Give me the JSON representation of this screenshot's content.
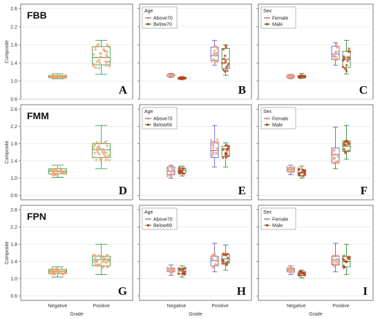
{
  "figure": {
    "y_axis_label": "Composite",
    "x_axis_label": "Grade",
    "y_ticks": [
      "0.6",
      "1.0",
      "1.4",
      "1.8",
      "2.2",
      "2.6"
    ],
    "x_ticks": [
      "Negative",
      "Positive"
    ]
  },
  "colors": {
    "single": "#2ea043",
    "above": "#5b5fd6",
    "below": "#2e8b32",
    "female": "#5b5fd6",
    "male": "#2e8b32",
    "dot": "#f0a070",
    "dot_dark": "#c0401a",
    "grid": "#e4e4e4"
  },
  "chart_data": [
    {
      "panel": "A",
      "row_label": "FBB",
      "type": "box",
      "ylabel": "Composite",
      "xlabel": "",
      "ylim": [
        0.6,
        2.7
      ],
      "categories": [
        "Negative",
        "Positive"
      ],
      "series": [
        {
          "boxes": [
            [
              1.05,
              1.08,
              1.1,
              1.12,
              1.16
            ],
            [
              1.15,
              1.36,
              1.52,
              1.76,
              1.9
            ]
          ]
        }
      ]
    },
    {
      "panel": "B",
      "type": "box",
      "legend_title": "Age",
      "ylim": [
        0.6,
        2.7
      ],
      "categories": [
        "Negative",
        "Positive"
      ],
      "series": [
        {
          "name": "Above70",
          "boxes": [
            [
              1.08,
              1.11,
              1.13,
              1.15,
              1.17
            ],
            [
              1.35,
              1.46,
              1.56,
              1.75,
              1.9
            ]
          ]
        },
        {
          "name": "Below70",
          "boxes": [
            [
              1.03,
              1.05,
              1.07,
              1.08,
              1.1
            ],
            [
              1.13,
              1.28,
              1.48,
              1.72,
              1.8
            ]
          ]
        }
      ]
    },
    {
      "panel": "C",
      "type": "box",
      "legend_title": "Sex",
      "ylim": [
        0.6,
        2.7
      ],
      "categories": [
        "Negative",
        "Positive"
      ],
      "series": [
        {
          "name": "Female",
          "boxes": [
            [
              1.05,
              1.07,
              1.1,
              1.12,
              1.15
            ],
            [
              1.35,
              1.48,
              1.6,
              1.77,
              1.85
            ]
          ]
        },
        {
          "name": "Male",
          "boxes": [
            [
              1.06,
              1.08,
              1.1,
              1.12,
              1.17
            ],
            [
              1.16,
              1.3,
              1.48,
              1.66,
              1.9
            ]
          ]
        }
      ]
    },
    {
      "panel": "D",
      "row_label": "FMM",
      "type": "box",
      "ylabel": "Composite",
      "xlabel": "",
      "ylim": [
        0.5,
        2.7
      ],
      "categories": [
        "Negative",
        "Positive"
      ],
      "series": [
        {
          "boxes": [
            [
              1.02,
              1.1,
              1.16,
              1.22,
              1.3
            ],
            [
              1.22,
              1.48,
              1.66,
              1.8,
              2.22
            ]
          ]
        }
      ]
    },
    {
      "panel": "E",
      "type": "box",
      "legend_title": "Age",
      "ylim": [
        0.5,
        2.7
      ],
      "categories": [
        "Negative",
        "Positive"
      ],
      "series": [
        {
          "name": "Above70",
          "boxes": [
            [
              1.0,
              1.08,
              1.16,
              1.26,
              1.3
            ],
            [
              1.26,
              1.48,
              1.64,
              1.84,
              2.22
            ]
          ]
        },
        {
          "name": "Below69",
          "boxes": [
            [
              1.05,
              1.12,
              1.18,
              1.23,
              1.28
            ],
            [
              1.26,
              1.5,
              1.68,
              1.74,
              1.82
            ]
          ]
        }
      ]
    },
    {
      "panel": "F",
      "type": "box",
      "legend_title": "Sex",
      "ylim": [
        0.5,
        2.7
      ],
      "categories": [
        "Negative",
        "Positive"
      ],
      "series": [
        {
          "name": "Female",
          "boxes": [
            [
              1.08,
              1.15,
              1.2,
              1.24,
              1.3
            ],
            [
              1.22,
              1.36,
              1.54,
              1.7,
              2.18
            ]
          ]
        },
        {
          "name": "Male",
          "boxes": [
            [
              1.0,
              1.06,
              1.12,
              1.2,
              1.28
            ],
            [
              1.44,
              1.62,
              1.74,
              1.86,
              2.22
            ]
          ]
        }
      ]
    },
    {
      "panel": "G",
      "row_label": "FPN",
      "type": "box",
      "ylabel": "Composite",
      "xlabel": "Grade",
      "ylim": [
        0.5,
        2.7
      ],
      "categories": [
        "Negative",
        "Positive"
      ],
      "series": [
        {
          "boxes": [
            [
              1.04,
              1.12,
              1.18,
              1.22,
              1.28
            ],
            [
              1.1,
              1.3,
              1.44,
              1.52,
              1.8
            ]
          ]
        }
      ]
    },
    {
      "panel": "H",
      "type": "box",
      "legend_title": "Age",
      "xlabel": "Grade",
      "ylim": [
        0.5,
        2.7
      ],
      "categories": [
        "Negative",
        "Positive"
      ],
      "series": [
        {
          "name": "Above70",
          "boxes": [
            [
              1.08,
              1.16,
              1.2,
              1.24,
              1.32
            ],
            [
              1.16,
              1.3,
              1.42,
              1.52,
              1.82
            ]
          ]
        },
        {
          "name": "Below69",
          "boxes": [
            [
              1.04,
              1.12,
              1.18,
              1.24,
              1.3
            ],
            [
              1.2,
              1.36,
              1.46,
              1.56,
              1.78
            ]
          ]
        }
      ]
    },
    {
      "panel": "I",
      "type": "box",
      "legend_title": "Sex",
      "xlabel": "Grade",
      "ylim": [
        0.5,
        2.7
      ],
      "categories": [
        "Negative",
        "Positive"
      ],
      "series": [
        {
          "name": "Female",
          "boxes": [
            [
              1.1,
              1.16,
              1.2,
              1.24,
              1.3
            ],
            [
              1.16,
              1.32,
              1.44,
              1.52,
              1.82
            ]
          ]
        },
        {
          "name": "Male",
          "boxes": [
            [
              1.02,
              1.08,
              1.12,
              1.16,
              1.2
            ],
            [
              1.1,
              1.28,
              1.4,
              1.52,
              1.8
            ]
          ]
        }
      ]
    }
  ]
}
